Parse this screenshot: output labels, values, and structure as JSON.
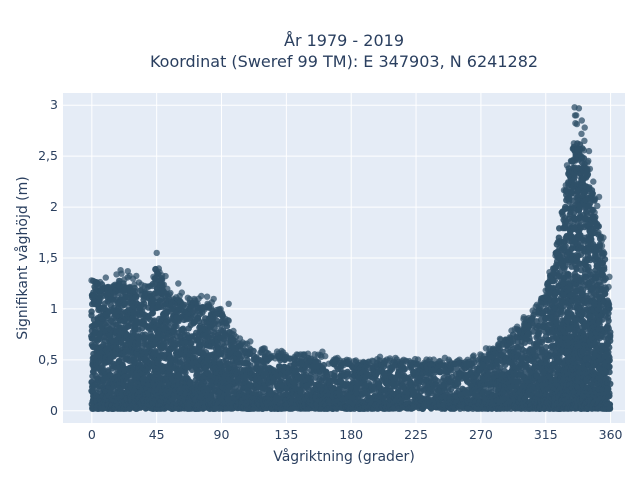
{
  "chart_data": {
    "type": "scatter",
    "title_line1": "År 1979 - 2019",
    "title_line2": "Koordinat (Sweref 99 TM): E 347903, N 6241282",
    "xlabel": "Vågriktning (grader)",
    "ylabel": "Signifikant våghöjd (m)",
    "xlim": [
      -20,
      370
    ],
    "ylim": [
      -0.12,
      3.12
    ],
    "x_ticks": [
      0,
      45,
      90,
      135,
      180,
      225,
      270,
      315,
      360
    ],
    "x_tick_labels": [
      "0",
      "45",
      "90",
      "135",
      "180",
      "225",
      "270",
      "315",
      "360"
    ],
    "y_ticks": [
      0,
      0.5,
      1,
      1.5,
      2,
      2.5,
      3
    ],
    "y_tick_labels": [
      "0",
      "0,5",
      "1",
      "1,5",
      "2",
      "2,5",
      "3"
    ],
    "grid": true,
    "colors": {
      "marker": "#2f5068",
      "plot_bg": "#e5ecf6",
      "grid": "#ffffff",
      "text": "#2a3f5f"
    },
    "series": [
      {
        "envelope_max_height": [
          [
            0,
            1.4
          ],
          [
            10,
            1.35
          ],
          [
            20,
            1.38
          ],
          [
            30,
            1.35
          ],
          [
            40,
            1.25
          ],
          [
            45,
            1.55
          ],
          [
            55,
            1.2
          ],
          [
            70,
            1.15
          ],
          [
            85,
            1.1
          ],
          [
            90,
            1.05
          ],
          [
            100,
            0.75
          ],
          [
            110,
            0.65
          ],
          [
            125,
            0.6
          ],
          [
            140,
            0.58
          ],
          [
            160,
            0.55
          ],
          [
            180,
            0.5
          ],
          [
            200,
            0.52
          ],
          [
            220,
            0.52
          ],
          [
            240,
            0.5
          ],
          [
            260,
            0.52
          ],
          [
            270,
            0.58
          ],
          [
            280,
            0.7
          ],
          [
            295,
            0.85
          ],
          [
            305,
            1.0
          ],
          [
            315,
            1.3
          ],
          [
            320,
            1.55
          ],
          [
            325,
            2.0
          ],
          [
            330,
            2.5
          ],
          [
            335,
            2.98
          ],
          [
            338,
            2.95
          ],
          [
            342,
            2.7
          ],
          [
            348,
            2.3
          ],
          [
            352,
            2.0
          ],
          [
            356,
            1.6
          ],
          [
            360,
            1.2
          ]
        ],
        "outliers": [
          [
            45,
            1.55
          ],
          [
            20,
            1.38
          ],
          [
            25,
            1.37
          ],
          [
            60,
            1.25
          ],
          [
            335,
            2.98
          ],
          [
            338,
            2.97
          ],
          [
            340,
            2.85
          ],
          [
            342,
            2.78
          ],
          [
            345,
            2.55
          ],
          [
            348,
            2.25
          ],
          [
            352,
            2.1
          ],
          [
            355,
            1.7
          ],
          [
            318,
            1.3
          ],
          [
            310,
            0.95
          ],
          [
            300,
            0.85
          ],
          [
            290,
            0.72
          ],
          [
            160,
            0.58
          ],
          [
            150,
            0.56
          ],
          [
            200,
            0.53
          ],
          [
            245,
            0.52
          ],
          [
            110,
            0.68
          ],
          [
            95,
            1.05
          ],
          [
            80,
            1.12
          ]
        ]
      }
    ]
  }
}
